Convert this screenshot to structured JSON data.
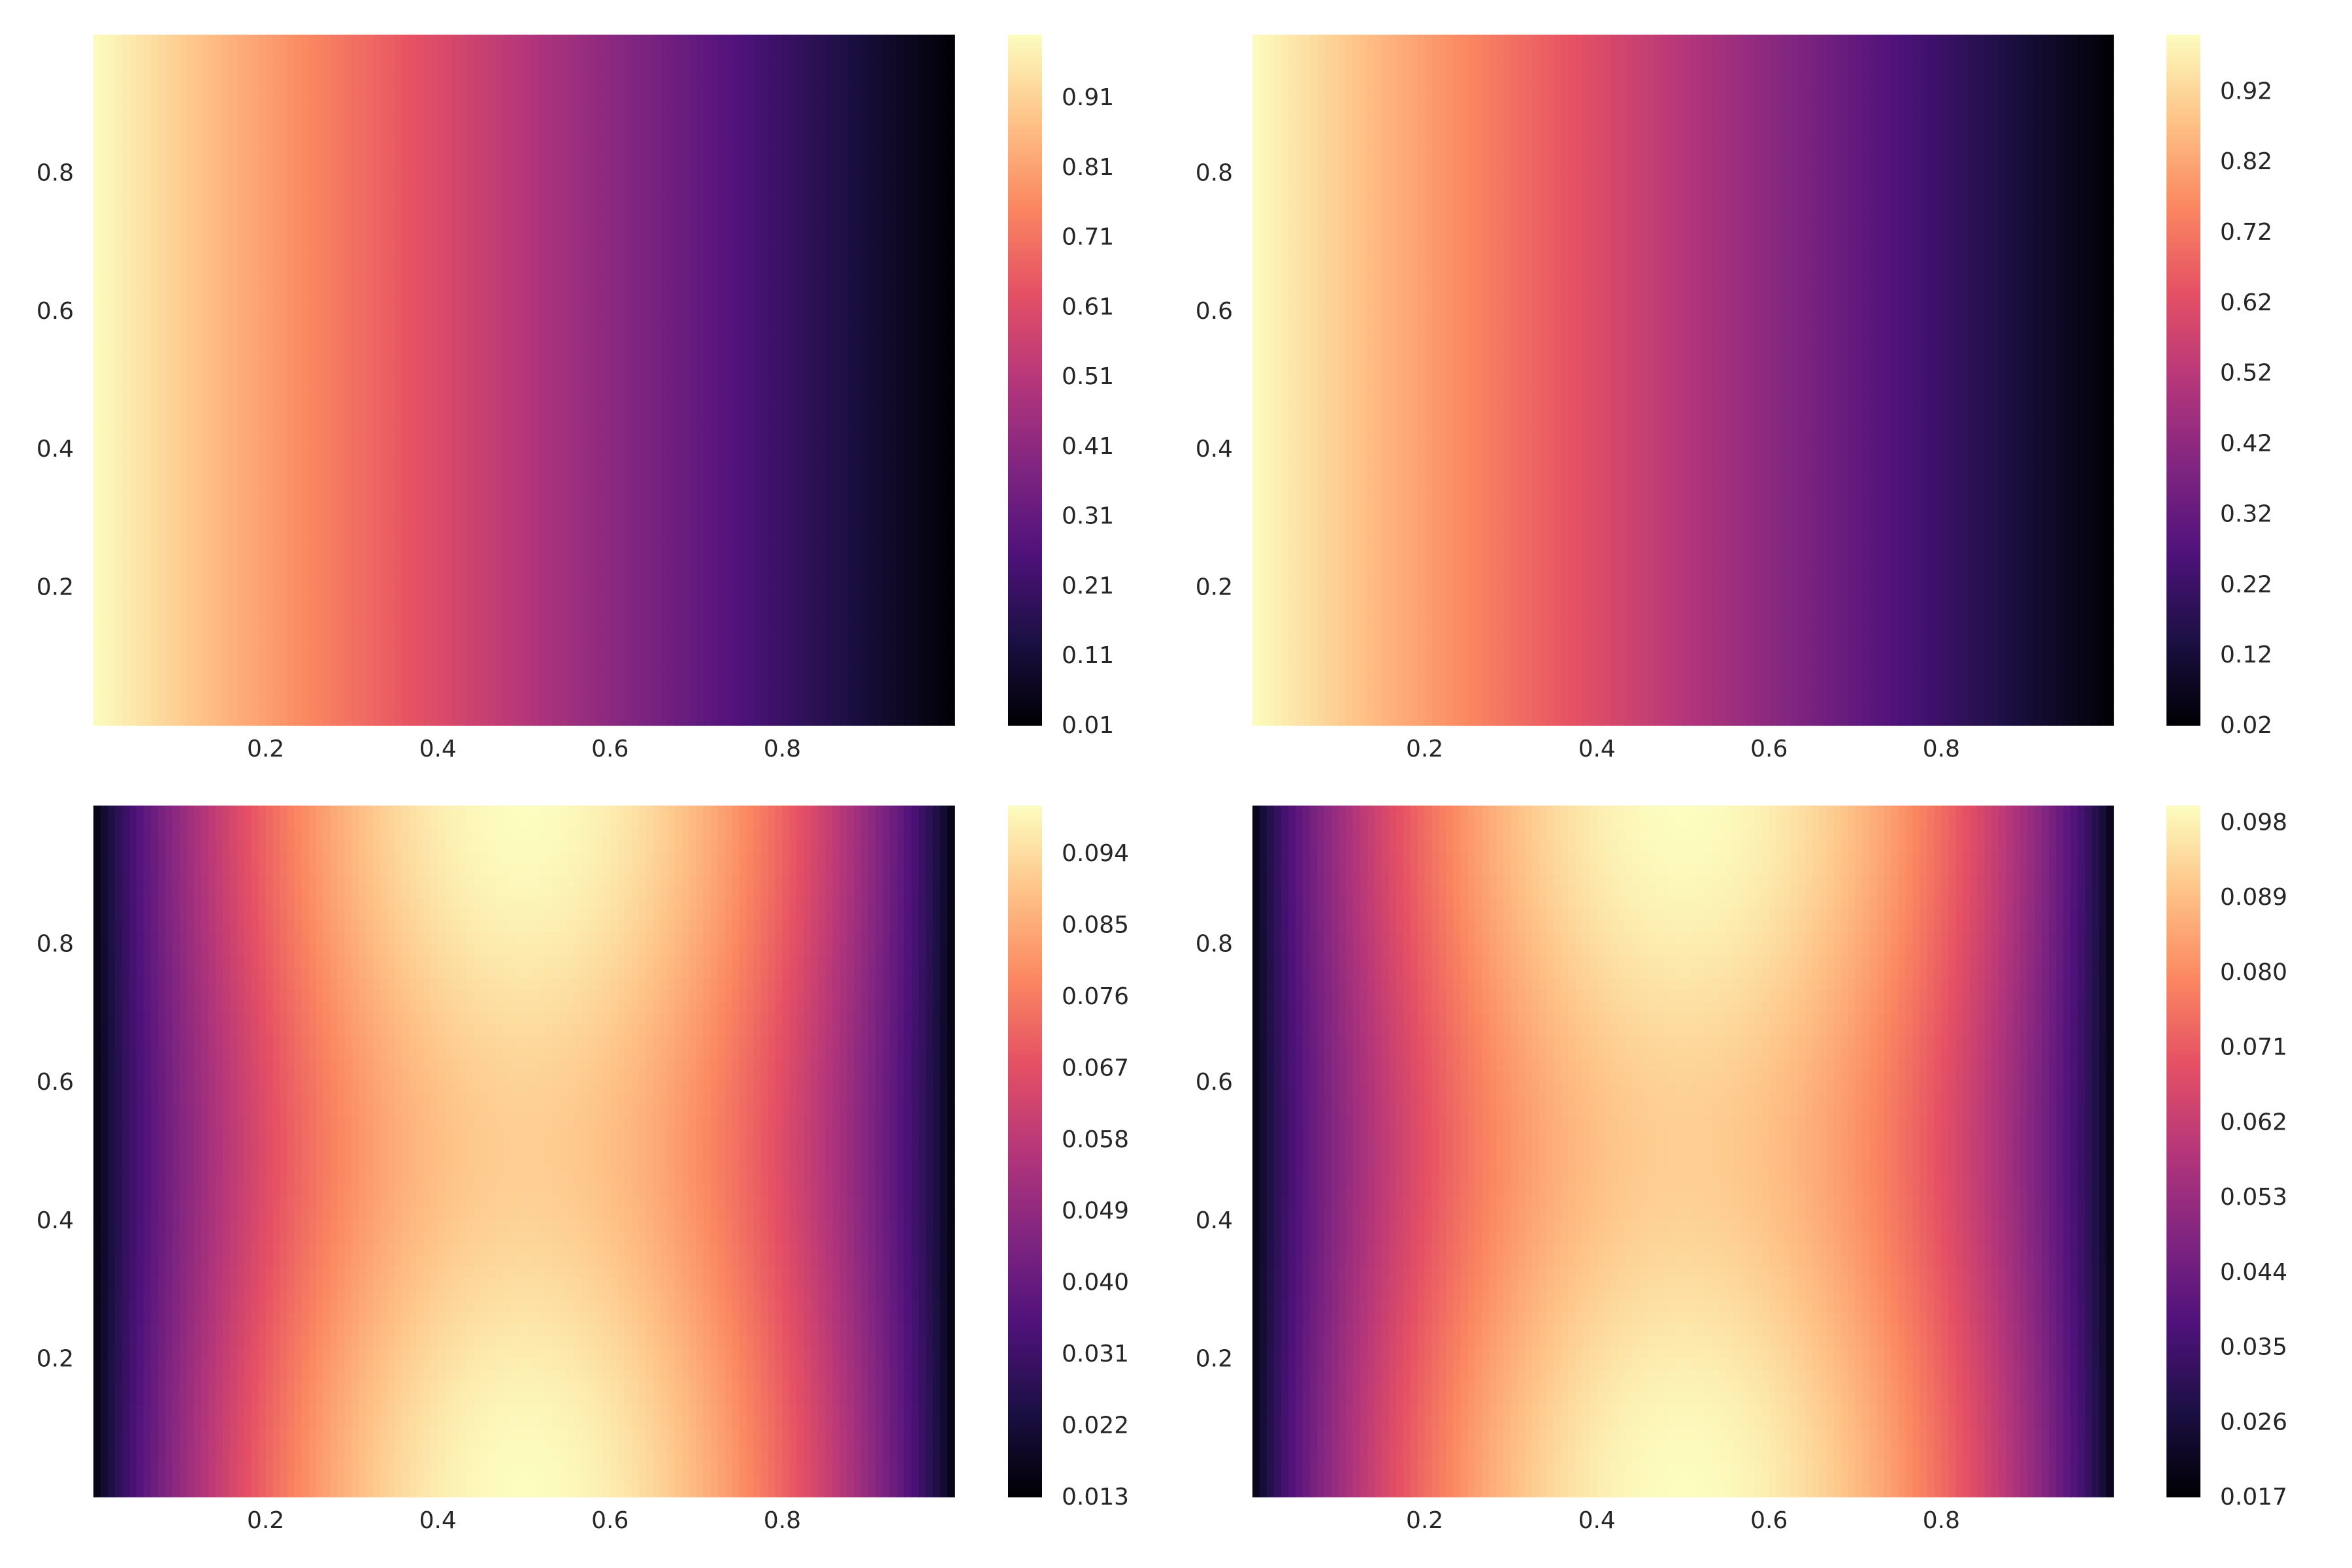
{
  "colormap": {
    "name": "magma",
    "stops": [
      "#000004",
      "#1c1044",
      "#4f127b",
      "#812581",
      "#b5367a",
      "#e55064",
      "#fb8761",
      "#fec287",
      "#fcfdbf"
    ]
  },
  "chart_data": [
    {
      "type": "heatmap",
      "panel": "top-left",
      "function": "u(x,y) = 1 - x (linear decrease in x, constant in y)",
      "x": {
        "ticks": [
          0.2,
          0.4,
          0.6,
          0.8
        ],
        "tick_labels": [
          "0.2",
          "0.4",
          "0.6",
          "0.8"
        ],
        "range": [
          0,
          1
        ]
      },
      "y": {
        "ticks": [
          0.2,
          0.4,
          0.6,
          0.8
        ],
        "tick_labels": [
          "0.2",
          "0.4",
          "0.6",
          "0.8"
        ],
        "range": [
          0,
          1
        ]
      },
      "colorbar": {
        "range": [
          0.01,
          1.0
        ],
        "tick_values": [
          0.01,
          0.11,
          0.21,
          0.31,
          0.41,
          0.51,
          0.61,
          0.71,
          0.81,
          0.91
        ],
        "tick_labels": [
          "0.01",
          "0.11",
          "0.21",
          "0.31",
          "0.41",
          "0.51",
          "0.61",
          "0.71",
          "0.81",
          "0.91"
        ]
      }
    },
    {
      "type": "heatmap",
      "panel": "top-right",
      "function": "u(x,y) ≈ 1 - x (linear decrease in x, constant in y)",
      "x": {
        "ticks": [
          0.2,
          0.4,
          0.6,
          0.8
        ],
        "tick_labels": [
          "0.2",
          "0.4",
          "0.6",
          "0.8"
        ],
        "range": [
          0,
          1
        ]
      },
      "y": {
        "ticks": [
          0.2,
          0.4,
          0.6,
          0.8
        ],
        "tick_labels": [
          "0.2",
          "0.4",
          "0.6",
          "0.8"
        ],
        "range": [
          0,
          1
        ]
      },
      "colorbar": {
        "range": [
          0.02,
          1.0
        ],
        "tick_values": [
          0.02,
          0.12,
          0.22,
          0.32,
          0.42,
          0.52,
          0.62,
          0.72,
          0.82,
          0.92
        ],
        "tick_labels": [
          "0.02",
          "0.12",
          "0.22",
          "0.32",
          "0.42",
          "0.52",
          "0.62",
          "0.72",
          "0.82",
          "0.92"
        ]
      }
    },
    {
      "type": "heatmap",
      "panel": "bottom-left",
      "function": "u(x,y) peaked at x=0.5, slightly lower near y=0.5, minimum at x=0 and x=1",
      "x": {
        "ticks": [
          0.2,
          0.4,
          0.6,
          0.8
        ],
        "tick_labels": [
          "0.2",
          "0.4",
          "0.6",
          "0.8"
        ],
        "range": [
          0,
          1
        ]
      },
      "y": {
        "ticks": [
          0.2,
          0.4,
          0.6,
          0.8
        ],
        "tick_labels": [
          "0.2",
          "0.4",
          "0.6",
          "0.8"
        ],
        "range": [
          0,
          1
        ]
      },
      "colorbar": {
        "range": [
          0.013,
          0.1
        ],
        "tick_values": [
          0.013,
          0.022,
          0.031,
          0.04,
          0.049,
          0.058,
          0.067,
          0.076,
          0.085,
          0.094
        ],
        "tick_labels": [
          "0.013",
          "0.022",
          "0.031",
          "0.040",
          "0.049",
          "0.058",
          "0.067",
          "0.076",
          "0.085",
          "0.094"
        ]
      }
    },
    {
      "type": "heatmap",
      "panel": "bottom-right",
      "function": "u(x,y) peaked at x=0.5, slightly lower near y=0.5, minimum at x=0 and x=1",
      "x": {
        "ticks": [
          0.2,
          0.4,
          0.6,
          0.8
        ],
        "tick_labels": [
          "0.2",
          "0.4",
          "0.6",
          "0.8"
        ],
        "range": [
          0,
          1
        ]
      },
      "y": {
        "ticks": [
          0.2,
          0.4,
          0.6,
          0.8
        ],
        "tick_labels": [
          "0.2",
          "0.4",
          "0.6",
          "0.8"
        ],
        "range": [
          0,
          1
        ]
      },
      "colorbar": {
        "range": [
          0.017,
          0.1
        ],
        "tick_values": [
          0.017,
          0.026,
          0.035,
          0.044,
          0.053,
          0.062,
          0.071,
          0.08,
          0.089,
          0.098
        ],
        "tick_labels": [
          "0.017",
          "0.026",
          "0.035",
          "0.044",
          "0.053",
          "0.062",
          "0.071",
          "0.080",
          "0.089",
          "0.098"
        ]
      }
    }
  ]
}
